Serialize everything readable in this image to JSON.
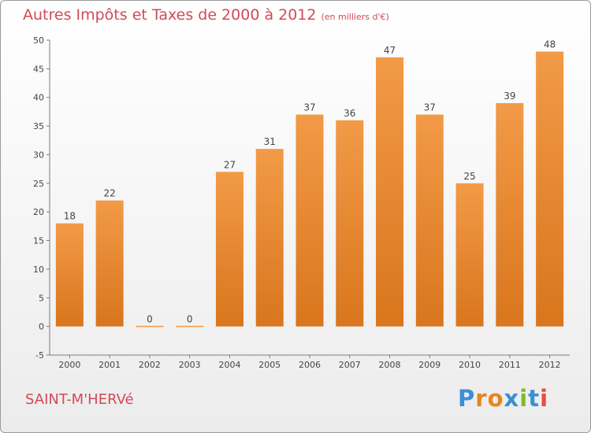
{
  "chart_data": {
    "type": "bar",
    "title": "Autres Impôts et Taxes de 2000 à 2012",
    "unit": "(en milliers d'€)",
    "categories": [
      "2000",
      "2001",
      "2002",
      "2003",
      "2004",
      "2005",
      "2006",
      "2007",
      "2008",
      "2009",
      "2010",
      "2011",
      "2012"
    ],
    "values": [
      18,
      22,
      0,
      0,
      27,
      31,
      37,
      36,
      47,
      37,
      25,
      39,
      48
    ],
    "ylim": [
      -5,
      50
    ],
    "yticks": [
      -5,
      0,
      5,
      10,
      15,
      20,
      25,
      30,
      35,
      40,
      45,
      50
    ],
    "xlabel": "",
    "ylabel": "",
    "grid": false,
    "legend": "none",
    "bar_color": "#f29a47",
    "bar_color_dark": "#d9761d",
    "axis_color": "#7a7a7a",
    "text_color": "#444444"
  },
  "location": "SAINT-M'HERVé",
  "brand": {
    "name": "Proxiti",
    "letter_colors": [
      "#3a8fd6",
      "#e7851f",
      "#e7851f",
      "#3a8fd6",
      "#7dbb2a",
      "#3a8fd6",
      "#e74c3c"
    ]
  }
}
